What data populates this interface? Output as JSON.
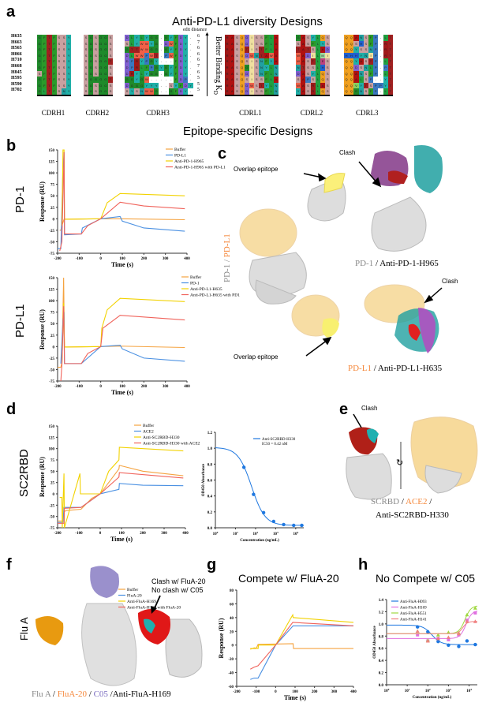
{
  "panel_labels": {
    "a": "a",
    "b": "b",
    "c": "c",
    "d": "d",
    "e": "e",
    "f": "f",
    "g": "g",
    "h": "h"
  },
  "panel_a": {
    "title": "Anti-PD-L1 diversity Designs",
    "edit_distance_label": "edit distance",
    "better_binding_label": "Better Binding K",
    "kd_subscript": "D",
    "rows": [
      "H635",
      "H663",
      "H565",
      "H066",
      "H710",
      "H668",
      "H845",
      "H595",
      "H590",
      "H702"
    ],
    "edit_distances": [
      "6",
      "7",
      "6",
      "6",
      "6",
      "7",
      "6",
      "5",
      "5",
      "5"
    ],
    "cdrs": [
      {
        "name": "CDRH1",
        "seqs": [
          "GFTFSSY",
          "GFTFSSY",
          "GFTFSSY",
          "GFTFSSY",
          "GFTFSSY",
          "GFTFSSY",
          "SFTFSSY",
          "GFTFSSY",
          "GFTFSSY",
          "GLTFSNY"
        ]
      },
      {
        "name": "CDRH2",
        "seqs": [
          "SGSGGS",
          "SGSGGS",
          "SGSGGS",
          "SGSGGS",
          "SGSGGT",
          "SGSGGS",
          "SGSGGS",
          "SGGGGT",
          "SGSGGS",
          "SGSGGS"
        ]
      },
      {
        "name": "CDRH3",
        "seqs": [
          "DLYLYGG-GYFDY",
          "SLYWWYG-DWFDY",
          "GTTWWGG-GYFDY",
          "DLWWPWT-PWFDY",
          "DPRYPGY---FDY",
          "DPRLFPGYGYFDY",
          "DRYLYGG-GYFDY",
          "GGYGW-----FDP",
          "DGGGYYY--SYFDY",
          "SYSNWWG--GFDY"
        ]
      },
      {
        "name": "CDRL1",
        "seqs": [
          "RASQDISSFLA",
          "RASQDISSFLA",
          "RASQTISTFLA",
          "RASQDWNTAWA",
          "RASQSISNFYA",
          "RASQGISNYLN",
          "RASQDISNFLN",
          "RASQSISSFLA",
          "RASQDWSTYLN",
          "RASQDISSFLN"
        ]
      },
      {
        "name": "CDRL2",
        "seqs": [
          "GASYLQS",
          "SASFLYS",
          "TATSLAD",
          "WADILMI",
          "WASTLES",
          "NTSSLHS",
          "DASYLQS",
          "SAPSLQS",
          "WASRLAS",
          "YASRLQS"
        ]
      },
      {
        "name": "CDRL3",
        "seqs": [
          "QQANSFP-LT",
          "QQSHSFP-RT",
          "QQYSSNP-RT",
          "HHHYNIP-RT",
          "QQYASTP-LT",
          "QQDSNLP-PT",
          "QQANSFP-LT",
          "QQALSP--YT",
          "QQVYTSPPYT",
          "QQGNSFP-LT"
        ]
      }
    ]
  },
  "epitope_title": "Epitope-specific Designs",
  "panel_b": {
    "row1_label": "PD-1",
    "row2_label": "PD-L1"
  },
  "panel_c": {
    "clash_top": "Clash",
    "overlap_top": "Overlap epitope",
    "caption_top": {
      "a": "PD-1",
      "sep": " / ",
      "b": "Anti-PD-1-H965"
    },
    "clash_bottom": "Clash",
    "overlap_bottom": "Overlap epitope",
    "caption_bottom": {
      "a": "PD-L1",
      "sep": " / ",
      "b": "Anti-PD-L1-H635"
    },
    "side_label": {
      "a": "PD-1",
      "sep": " / ",
      "b": "PD-L1"
    }
  },
  "panel_d": {
    "row_label": "SC2RBD"
  },
  "panel_e": {
    "clash": "Clash",
    "caption_line1": {
      "a": "SCRBD",
      "sep1": " / ",
      "b": "ACE2",
      "sep2": " /"
    },
    "caption_line2": "Anti-SC2RBD-H330"
  },
  "panel_f": {
    "row_label": "Flu A",
    "clash_line1": "Clash w/ FluA-20",
    "clash_line2": "No clash w/ C05",
    "caption": {
      "a": "Flu A",
      "s1": " / ",
      "b": "FluA-20",
      "s2": " / ",
      "c": "C05",
      "s3": " /",
      "d": "Anti-FluA-H169"
    }
  },
  "colors": {
    "buffer": "#f5a340",
    "blue": "#4a90e2",
    "yellow": "#f2d200",
    "red": "#f0625a",
    "orange": "#f0a030",
    "grey": "#b8b8b8",
    "magenta": "#e070e0",
    "green": "#a0d840",
    "pink": "#f08080",
    "fluA20": "#f5873a",
    "c05": "#8a78c8"
  },
  "chart_data": [
    {
      "id": "b1",
      "type": "line",
      "title": "",
      "xlabel": "Time (s)",
      "ylabel": "Response (RU)",
      "xlim": [
        -200,
        400
      ],
      "ylim": [
        -75,
        150
      ],
      "xticks": [
        -200,
        -100,
        0,
        100,
        200,
        300,
        400
      ],
      "yticks": [
        -75,
        -50,
        -25,
        0,
        25,
        50,
        75,
        100,
        125,
        150
      ],
      "legend": "top-right",
      "series": [
        {
          "name": "Buffer",
          "color": "#f5a340",
          "x": [
            -190,
            -185,
            -180,
            -170,
            -168,
            0,
            90,
            390
          ],
          "y": [
            -25,
            -25,
            -15,
            -1,
            -1,
            0,
            0,
            -2
          ]
        },
        {
          "name": "PD-L1",
          "color": "#4a90e2",
          "x": [
            -200,
            -185,
            -175,
            -170,
            -168,
            -90,
            -85,
            0,
            90,
            100,
            200,
            390
          ],
          "y": [
            -65,
            -65,
            110,
            145,
            -35,
            -33,
            -20,
            0,
            5,
            -5,
            -20,
            -27
          ]
        },
        {
          "name": "Anti-PD-1-H965",
          "color": "#f2d200",
          "x": [
            -180,
            -175,
            -170,
            -168,
            0,
            30,
            90,
            390
          ],
          "y": [
            -15,
            150,
            150,
            -1,
            0,
            35,
            55,
            50
          ]
        },
        {
          "name": "Anti-PD-1-H965 with PD-L1",
          "color": "#f0625a",
          "x": [
            -190,
            -180,
            -170,
            -168,
            -90,
            -60,
            0,
            90,
            200,
            390
          ],
          "y": [
            -70,
            -50,
            145,
            -33,
            -33,
            -15,
            0,
            36,
            28,
            22
          ]
        }
      ]
    },
    {
      "id": "b2",
      "type": "line",
      "title": "",
      "xlabel": "Time (s)",
      "ylabel": "Response (RU)",
      "xlim": [
        -200,
        400
      ],
      "ylim": [
        -75,
        150
      ],
      "xticks": [
        -200,
        -100,
        0,
        100,
        200,
        300,
        400
      ],
      "yticks": [
        -75,
        -50,
        -25,
        0,
        25,
        50,
        75,
        100,
        125,
        150
      ],
      "legend": "top-right",
      "series": [
        {
          "name": "Buffer",
          "color": "#f5a340",
          "x": [
            -200,
            -185,
            -180,
            -172,
            -168,
            0,
            90,
            390
          ],
          "y": [
            -45,
            -45,
            -35,
            150,
            -1,
            0,
            1,
            -2
          ]
        },
        {
          "name": "PD-1",
          "color": "#4a90e2",
          "x": [
            -185,
            -175,
            -170,
            -168,
            -90,
            0,
            90,
            100,
            200,
            390
          ],
          "y": [
            -37,
            60,
            75,
            -37,
            -37,
            0,
            3,
            -5,
            -25,
            -32
          ]
        },
        {
          "name": "Anti-PD-L1-H635",
          "color": "#f2d200",
          "x": [
            -180,
            -172,
            -168,
            0,
            5,
            30,
            90,
            390
          ],
          "y": [
            -40,
            95,
            -1,
            0,
            40,
            80,
            105,
            98
          ]
        },
        {
          "name": "Anti-PD-L1-H635 with PD1",
          "color": "#f0625a",
          "x": [
            -185,
            -180,
            -172,
            -168,
            -90,
            -60,
            0,
            10,
            90,
            390
          ],
          "y": [
            -75,
            -40,
            88,
            -37,
            -37,
            -15,
            0,
            40,
            68,
            58
          ]
        }
      ]
    },
    {
      "id": "d1",
      "type": "line",
      "title": "",
      "xlabel": "Time (s)",
      "ylabel": "Response (RU)",
      "xlim": [
        -200,
        400
      ],
      "ylim": [
        -75,
        150
      ],
      "xticks": [
        -200,
        -100,
        0,
        100,
        200,
        300,
        400
      ],
      "yticks": [
        -75,
        -50,
        -25,
        0,
        25,
        50,
        75,
        100,
        125,
        150
      ],
      "legend": "top-right",
      "series": [
        {
          "name": "Buffer",
          "color": "#f5a340",
          "x": [
            -200,
            -175,
            -170,
            -160,
            -90,
            -40,
            0,
            88,
            90,
            200,
            390
          ],
          "y": [
            -60,
            -60,
            -40,
            -37,
            -34,
            -10,
            0,
            55,
            63,
            50,
            40
          ]
        },
        {
          "name": "ACE2",
          "color": "#4a90e2",
          "x": [
            -200,
            -175,
            -170,
            -90,
            0,
            88,
            90,
            200,
            390
          ],
          "y": [
            -63,
            -63,
            -30,
            -30,
            0,
            10,
            23,
            19,
            18
          ]
        },
        {
          "name": "Anti-SC2RBD-H330",
          "color": "#f2d200",
          "x": [
            -190,
            -180,
            -178,
            -170,
            -168,
            -95,
            -93,
            0,
            40,
            88,
            90,
            390
          ],
          "y": [
            -8,
            -8,
            -75,
            45,
            -75,
            45,
            0,
            0,
            50,
            75,
            103,
            95
          ]
        },
        {
          "name": "Anti-SC2RBD-H330 with ACE2",
          "color": "#f0625a",
          "x": [
            -200,
            -170,
            -168,
            -90,
            0,
            88,
            90,
            390
          ],
          "y": [
            -65,
            -65,
            -32,
            -30,
            0,
            37,
            47,
            35
          ]
        }
      ]
    },
    {
      "id": "d2",
      "type": "scatter",
      "title": "",
      "xlabel": "Concentration (ng/mL)",
      "ylabel": "OD450 Absorbance",
      "xscale": "log",
      "xlim": [
        0,
        4.4
      ],
      "ylim": [
        0,
        1.2
      ],
      "xticks": [
        0,
        1,
        2,
        3,
        4
      ],
      "yticks": [
        0,
        0.2,
        0.4,
        0.6,
        0.8,
        1.0,
        1.2
      ],
      "legend": "top-right",
      "series": [
        {
          "name": "Anti-SC2RBD-H330",
          "annotation": "IC50 = 0.42 nM",
          "color": "#1f78e0",
          "logx": [
            1.42,
            1.9,
            2.4,
            2.9,
            3.4,
            3.9,
            4.3
          ],
          "y": [
            0.76,
            0.42,
            0.19,
            0.08,
            0.04,
            0.03,
            0.03
          ],
          "fit": {
            "top": 1.01,
            "bottom": 0.03,
            "logmid": 1.8,
            "hill": 1.3
          }
        }
      ]
    },
    {
      "id": "g",
      "type": "line",
      "title": "Compete w/ FluA-20",
      "xlabel": "Time (s)",
      "ylabel": "Response (RU)",
      "xlim": [
        -200,
        400
      ],
      "ylim": [
        -60,
        80
      ],
      "xticks": [
        -200,
        -100,
        0,
        100,
        200,
        300,
        400
      ],
      "yticks": [
        -60,
        -40,
        -20,
        0,
        20,
        40,
        60,
        80
      ],
      "legend": "top-right",
      "series": [
        {
          "name": "Buffer",
          "color": "#f5a340",
          "x": [
            -130,
            -100,
            -90,
            90,
            92,
            400
          ],
          "y": [
            -5,
            -5,
            1,
            2,
            -5,
            -5
          ]
        },
        {
          "name": "FluA-20",
          "color": "#4a90e2",
          "x": [
            -130,
            -110,
            -90,
            0,
            90,
            400
          ],
          "y": [
            -50,
            -48,
            -48,
            0,
            28,
            28
          ]
        },
        {
          "name": "Anti-FluA-H169",
          "color": "#f2d200",
          "x": [
            -130,
            -110,
            -90,
            -88,
            0,
            88,
            90,
            400
          ],
          "y": [
            -6,
            -4,
            -5,
            0,
            0,
            44,
            40,
            33
          ]
        },
        {
          "name": "Anti-FluA-H169  with FluA-20",
          "color": "#f0625a",
          "x": [
            -130,
            -110,
            -90,
            0,
            88,
            400
          ],
          "y": [
            -35,
            -32,
            -30,
            0,
            33,
            28
          ]
        }
      ]
    },
    {
      "id": "h",
      "type": "scatter",
      "title": "No Compete w/ C05",
      "xlabel": "Concentration (ng/mL)",
      "ylabel": "OD450 Absorbance",
      "xscale": "log",
      "xlim": [
        0,
        4.4
      ],
      "ylim": [
        0,
        1.4
      ],
      "xticks": [
        0,
        1,
        2,
        3,
        4
      ],
      "yticks": [
        0,
        0.2,
        0.4,
        0.6,
        0.8,
        1.0,
        1.2,
        1.4
      ],
      "legend": "top-left",
      "series": [
        {
          "name": "Anti-FluA-H093",
          "color": "#1f78e0",
          "marker": "circle",
          "logx": [
            1.5,
            2,
            2.5,
            3,
            3.5,
            3.9,
            4.3
          ],
          "y": [
            0.95,
            0.87,
            0.71,
            0.65,
            0.63,
            0.72,
            0.66
          ],
          "fit": {
            "top": 0.98,
            "bottom": 0.66,
            "logmid": 2.2,
            "hill": 2
          }
        },
        {
          "name": "Anti-FluA-H169",
          "color": "#e070e0",
          "marker": "square",
          "logx": [
            1.5,
            2,
            2.5,
            3,
            3.5,
            3.9,
            4.3
          ],
          "y": [
            0.82,
            0.72,
            0.76,
            0.74,
            0.82,
            1.06,
            1.18
          ],
          "fit": {
            "top": 0.76,
            "bottom": 1.22,
            "logmid": 3.85,
            "hill": 3
          }
        },
        {
          "name": "Anti-FluA-H551",
          "color": "#a0d840",
          "marker": "triangle",
          "logx": [
            1.5,
            2,
            2.5,
            3,
            3.5,
            3.9,
            4.3
          ],
          "y": [
            0.88,
            0.73,
            0.82,
            0.86,
            0.85,
            1.15,
            1.26
          ],
          "fit": {
            "top": 0.84,
            "bottom": 1.3,
            "logmid": 3.8,
            "hill": 3
          }
        },
        {
          "name": "Anti-FluA-H141",
          "color": "#f08080",
          "marker": "triangle",
          "logx": [
            1.5,
            2,
            2.5,
            3,
            3.5,
            3.9,
            4.3
          ],
          "y": [
            0.88,
            0.72,
            0.76,
            0.78,
            0.84,
            1.04,
            1.04
          ],
          "fit": {
            "top": 0.84,
            "bottom": 1.04,
            "logmid": 3.7,
            "hill": 4
          }
        }
      ]
    }
  ]
}
